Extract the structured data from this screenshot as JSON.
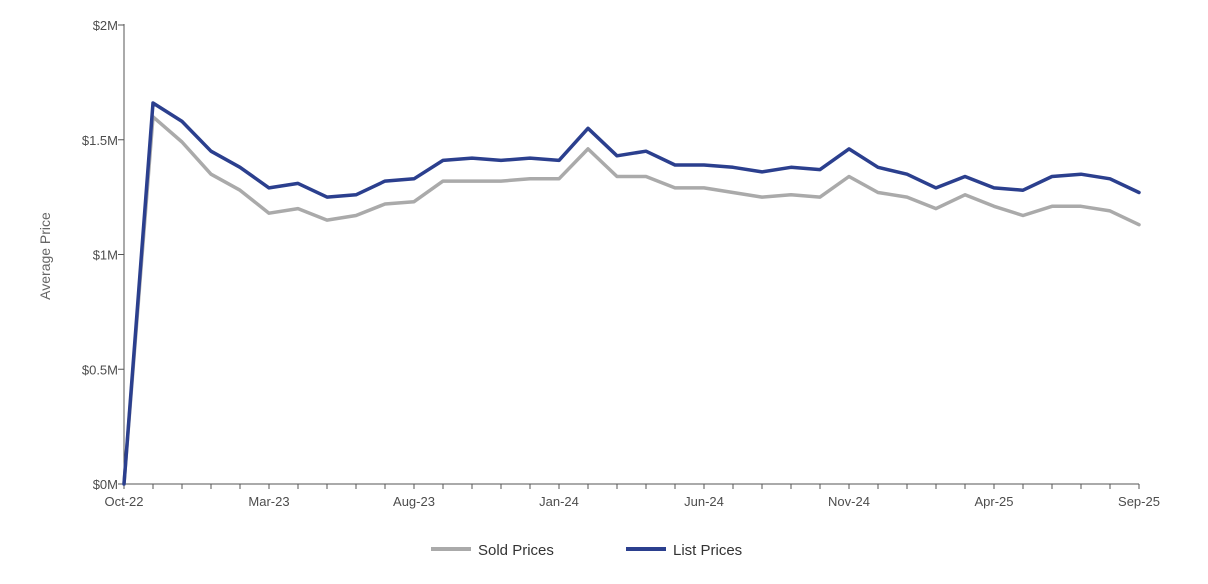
{
  "chart_data": {
    "type": "line",
    "title": "",
    "xlabel": "",
    "ylabel": "Average Price",
    "x": [
      "Oct-22",
      "Nov-22",
      "Dec-22",
      "Jan-23",
      "Feb-23",
      "Mar-23",
      "Apr-23",
      "May-23",
      "Jun-23",
      "Jul-23",
      "Aug-23",
      "Sep-23",
      "Oct-23",
      "Nov-23",
      "Dec-23",
      "Jan-24",
      "Feb-24",
      "Mar-24",
      "Apr-24",
      "May-24",
      "Jun-24",
      "Jul-24",
      "Aug-24",
      "Sep-24",
      "Oct-24",
      "Nov-24",
      "Dec-24",
      "Jan-25",
      "Feb-25",
      "Mar-25",
      "Apr-25",
      "May-25",
      "Jun-25",
      "Jul-25",
      "Aug-25",
      "Sep-25"
    ],
    "x_tick_labels": [
      "Oct-22",
      "Mar-23",
      "Aug-23",
      "Jan-24",
      "Jun-24",
      "Nov-24",
      "Apr-25",
      "Sep-25"
    ],
    "y_tick_labels": [
      "$0M",
      "$0.5M",
      "$1M",
      "$1.5M",
      "$2M"
    ],
    "y_ticks": [
      0,
      0.5,
      1,
      1.5,
      2
    ],
    "ylim": [
      0,
      2
    ],
    "y_unit": "$M",
    "grid": false,
    "legend_position": "bottom",
    "series": [
      {
        "name": "Sold Prices",
        "color": "#aaaaaa",
        "values": [
          0,
          1.6,
          1.49,
          1.35,
          1.28,
          1.18,
          1.2,
          1.15,
          1.17,
          1.22,
          1.23,
          1.32,
          1.32,
          1.32,
          1.33,
          1.33,
          1.46,
          1.34,
          1.34,
          1.29,
          1.29,
          1.27,
          1.25,
          1.26,
          1.25,
          1.34,
          1.27,
          1.25,
          1.2,
          1.26,
          1.21,
          1.17,
          1.21,
          1.21,
          1.19,
          1.13
        ]
      },
      {
        "name": "List Prices",
        "color": "#2b3f8e",
        "values": [
          0,
          1.66,
          1.58,
          1.45,
          1.38,
          1.29,
          1.31,
          1.25,
          1.26,
          1.32,
          1.33,
          1.41,
          1.42,
          1.41,
          1.42,
          1.41,
          1.55,
          1.43,
          1.45,
          1.39,
          1.39,
          1.38,
          1.36,
          1.38,
          1.37,
          1.46,
          1.38,
          1.35,
          1.29,
          1.34,
          1.29,
          1.28,
          1.34,
          1.35,
          1.33,
          1.27
        ]
      }
    ]
  }
}
